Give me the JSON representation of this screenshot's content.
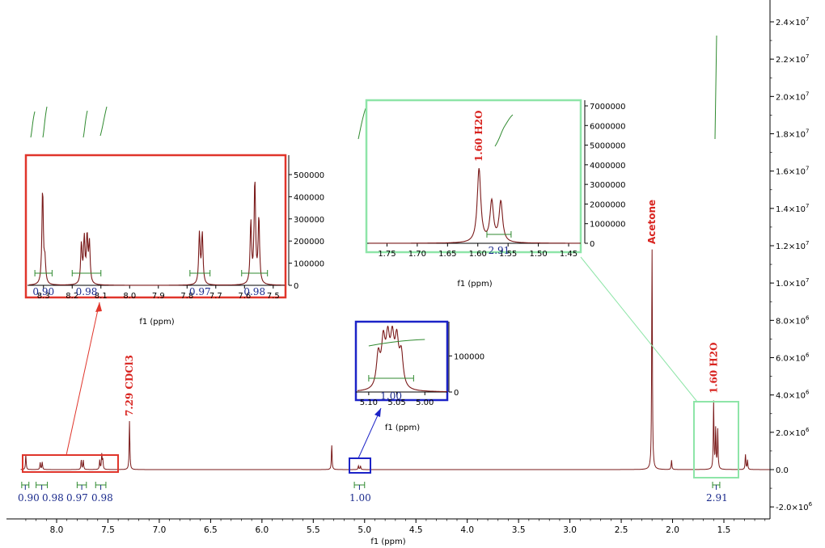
{
  "chart_data": {
    "type": "line",
    "title": "",
    "xlabel": "f1 (ppm)",
    "ylabel": "",
    "x_direction": "reversed",
    "xlim": [
      8.35,
      1.05
    ],
    "ylim": [
      -2400000.0,
      25000000.0
    ],
    "x_ticks": [
      "8.0",
      "7.5",
      "7.0",
      "6.5",
      "6.0",
      "5.5",
      "5.0",
      "4.5",
      "4.0",
      "3.5",
      "3.0",
      "2.5",
      "2.0",
      "1.5"
    ],
    "y_ticks": [
      {
        "value": -2000000,
        "base": "-2.0×10",
        "exp": "6"
      },
      {
        "value": 0,
        "base": "0.0",
        "exp": ""
      },
      {
        "value": 2000000,
        "base": "2.0×10",
        "exp": "6"
      },
      {
        "value": 4000000,
        "base": "4.0×10",
        "exp": "6"
      },
      {
        "value": 6000000,
        "base": "6.0×10",
        "exp": "6"
      },
      {
        "value": 8000000,
        "base": "8.0×10",
        "exp": "6"
      },
      {
        "value": 10000000,
        "base": "1.0×10",
        "exp": "7"
      },
      {
        "value": 12000000,
        "base": "1.2×10",
        "exp": "7"
      },
      {
        "value": 14000000,
        "base": "1.4×10",
        "exp": "7"
      },
      {
        "value": 16000000,
        "base": "1.6×10",
        "exp": "7"
      },
      {
        "value": 18000000,
        "base": "1.8×10",
        "exp": "7"
      },
      {
        "value": 20000000,
        "base": "2.0×10",
        "exp": "7"
      },
      {
        "value": 22000000,
        "base": "2.2×10",
        "exp": "7"
      },
      {
        "value": 24000000,
        "base": "2.4×10",
        "exp": "7"
      }
    ],
    "peaks": [
      {
        "ppm": 8.3,
        "height": 800000
      },
      {
        "ppm": 8.16,
        "height": 380000
      },
      {
        "ppm": 8.14,
        "height": 400000
      },
      {
        "ppm": 7.76,
        "height": 500000
      },
      {
        "ppm": 7.74,
        "height": 500000
      },
      {
        "ppm": 7.58,
        "height": 500000
      },
      {
        "ppm": 7.56,
        "height": 800000
      },
      {
        "ppm": 7.55,
        "height": 500000
      },
      {
        "ppm": 7.29,
        "height": 2600000
      },
      {
        "ppm": 5.32,
        "height": 1300000
      },
      {
        "ppm": 5.06,
        "height": 200000
      },
      {
        "ppm": 5.04,
        "height": 200000
      },
      {
        "ppm": 2.2,
        "height": 11800000
      },
      {
        "ppm": 2.01,
        "height": 500000
      },
      {
        "ppm": 1.6,
        "height": 3600000
      },
      {
        "ppm": 1.58,
        "height": 2100000
      },
      {
        "ppm": 1.56,
        "height": 2100000
      },
      {
        "ppm": 1.29,
        "height": 800000
      },
      {
        "ppm": 1.27,
        "height": 500000
      }
    ],
    "integrations": [
      {
        "ppm": 8.3,
        "label": "0.90"
      },
      {
        "ppm": 8.15,
        "label": "0.98"
      },
      {
        "ppm": 7.75,
        "label": "0.97"
      },
      {
        "ppm": 7.57,
        "label": "0.98"
      },
      {
        "ppm": 5.05,
        "label": "1.00"
      },
      {
        "ppm": 1.57,
        "label": "2.91"
      }
    ],
    "annotations": [
      {
        "text": "7.29 CDCl3",
        "ppm": 7.29
      },
      {
        "text": "Acetone",
        "ppm": 2.2
      },
      {
        "text": "1.60 H2O",
        "ppm": 1.6
      }
    ],
    "insets": [
      {
        "name": "aromatic",
        "xlim": [
          8.35,
          7.45
        ],
        "ylim": [
          -20000,
          560000
        ],
        "x_ticks": [
          "8.3",
          "8.2",
          "8.1",
          "8.0",
          "7.9",
          "7.8",
          "7.7",
          "7.6",
          "7.5"
        ],
        "y_ticks": [
          "0",
          "100000",
          "200000",
          "300000",
          "400000",
          "500000"
        ],
        "xlabel": "f1 (ppm)",
        "integrations": [
          "0.90",
          "0.98",
          "0.97",
          "0.98"
        ]
      },
      {
        "name": "olefinic",
        "xlim": [
          5.12,
          4.96
        ],
        "y_ticks": [
          "0",
          "100000"
        ],
        "x_ticks": [
          "5.10",
          "5.05",
          "5.00"
        ],
        "xlabel": "f1 (ppm)",
        "integrations": [
          "1.00"
        ]
      },
      {
        "name": "water",
        "xlim": [
          1.78,
          1.43
        ],
        "y_ticks": [
          "0",
          "1000000",
          "2000000",
          "3000000",
          "4000000",
          "5000000",
          "6000000",
          "7000000"
        ],
        "x_ticks": [
          "1.75",
          "1.70",
          "1.65",
          "1.60",
          "1.55",
          "1.50",
          "1.45"
        ],
        "xlabel": "f1 (ppm)",
        "integrations": [
          "2.91"
        ],
        "annotation": "1.60 H2O"
      }
    ]
  },
  "colors": {
    "spectrum": "#7a1a1a",
    "integral": "#2f8a2f",
    "integ_text": "#1a2a8c",
    "box_red": "#e0352b",
    "box_blue": "#1c23c7",
    "box_green": "#8ee5a8",
    "label_red": "#d8231f"
  }
}
